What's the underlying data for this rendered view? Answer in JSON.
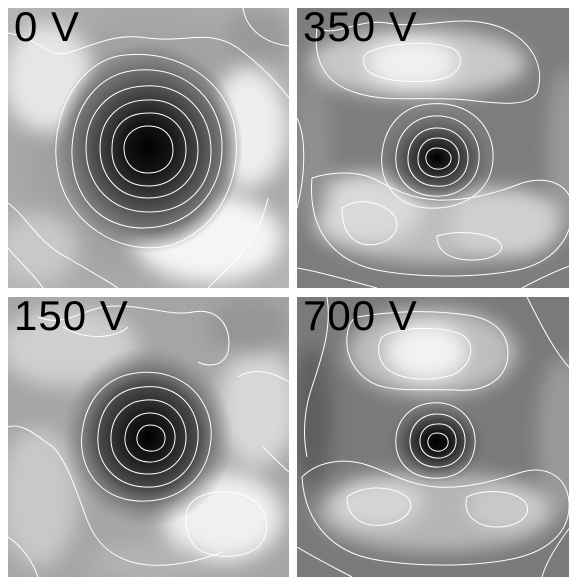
{
  "panels": [
    {
      "label": "0 V",
      "core_color": "#000000",
      "core": "large-dark-vortex",
      "background": "bright-lower-right-lobe"
    },
    {
      "label": "350 V",
      "core_color": "#000000",
      "core": "small-dark-vortex",
      "background": "bright-top-and-crescent"
    },
    {
      "label": "150 V",
      "core_color": "#000000",
      "core": "medium-dark-vortex",
      "background": "bright-lower-right-lobe"
    },
    {
      "label": "700 V",
      "core_color": "#000000",
      "core": "small-dark-vortex",
      "background": "bright-top-and-crescent"
    }
  ],
  "colors": {
    "contour": "#ffffff",
    "gap": "#ffffff",
    "label": "#000000"
  }
}
